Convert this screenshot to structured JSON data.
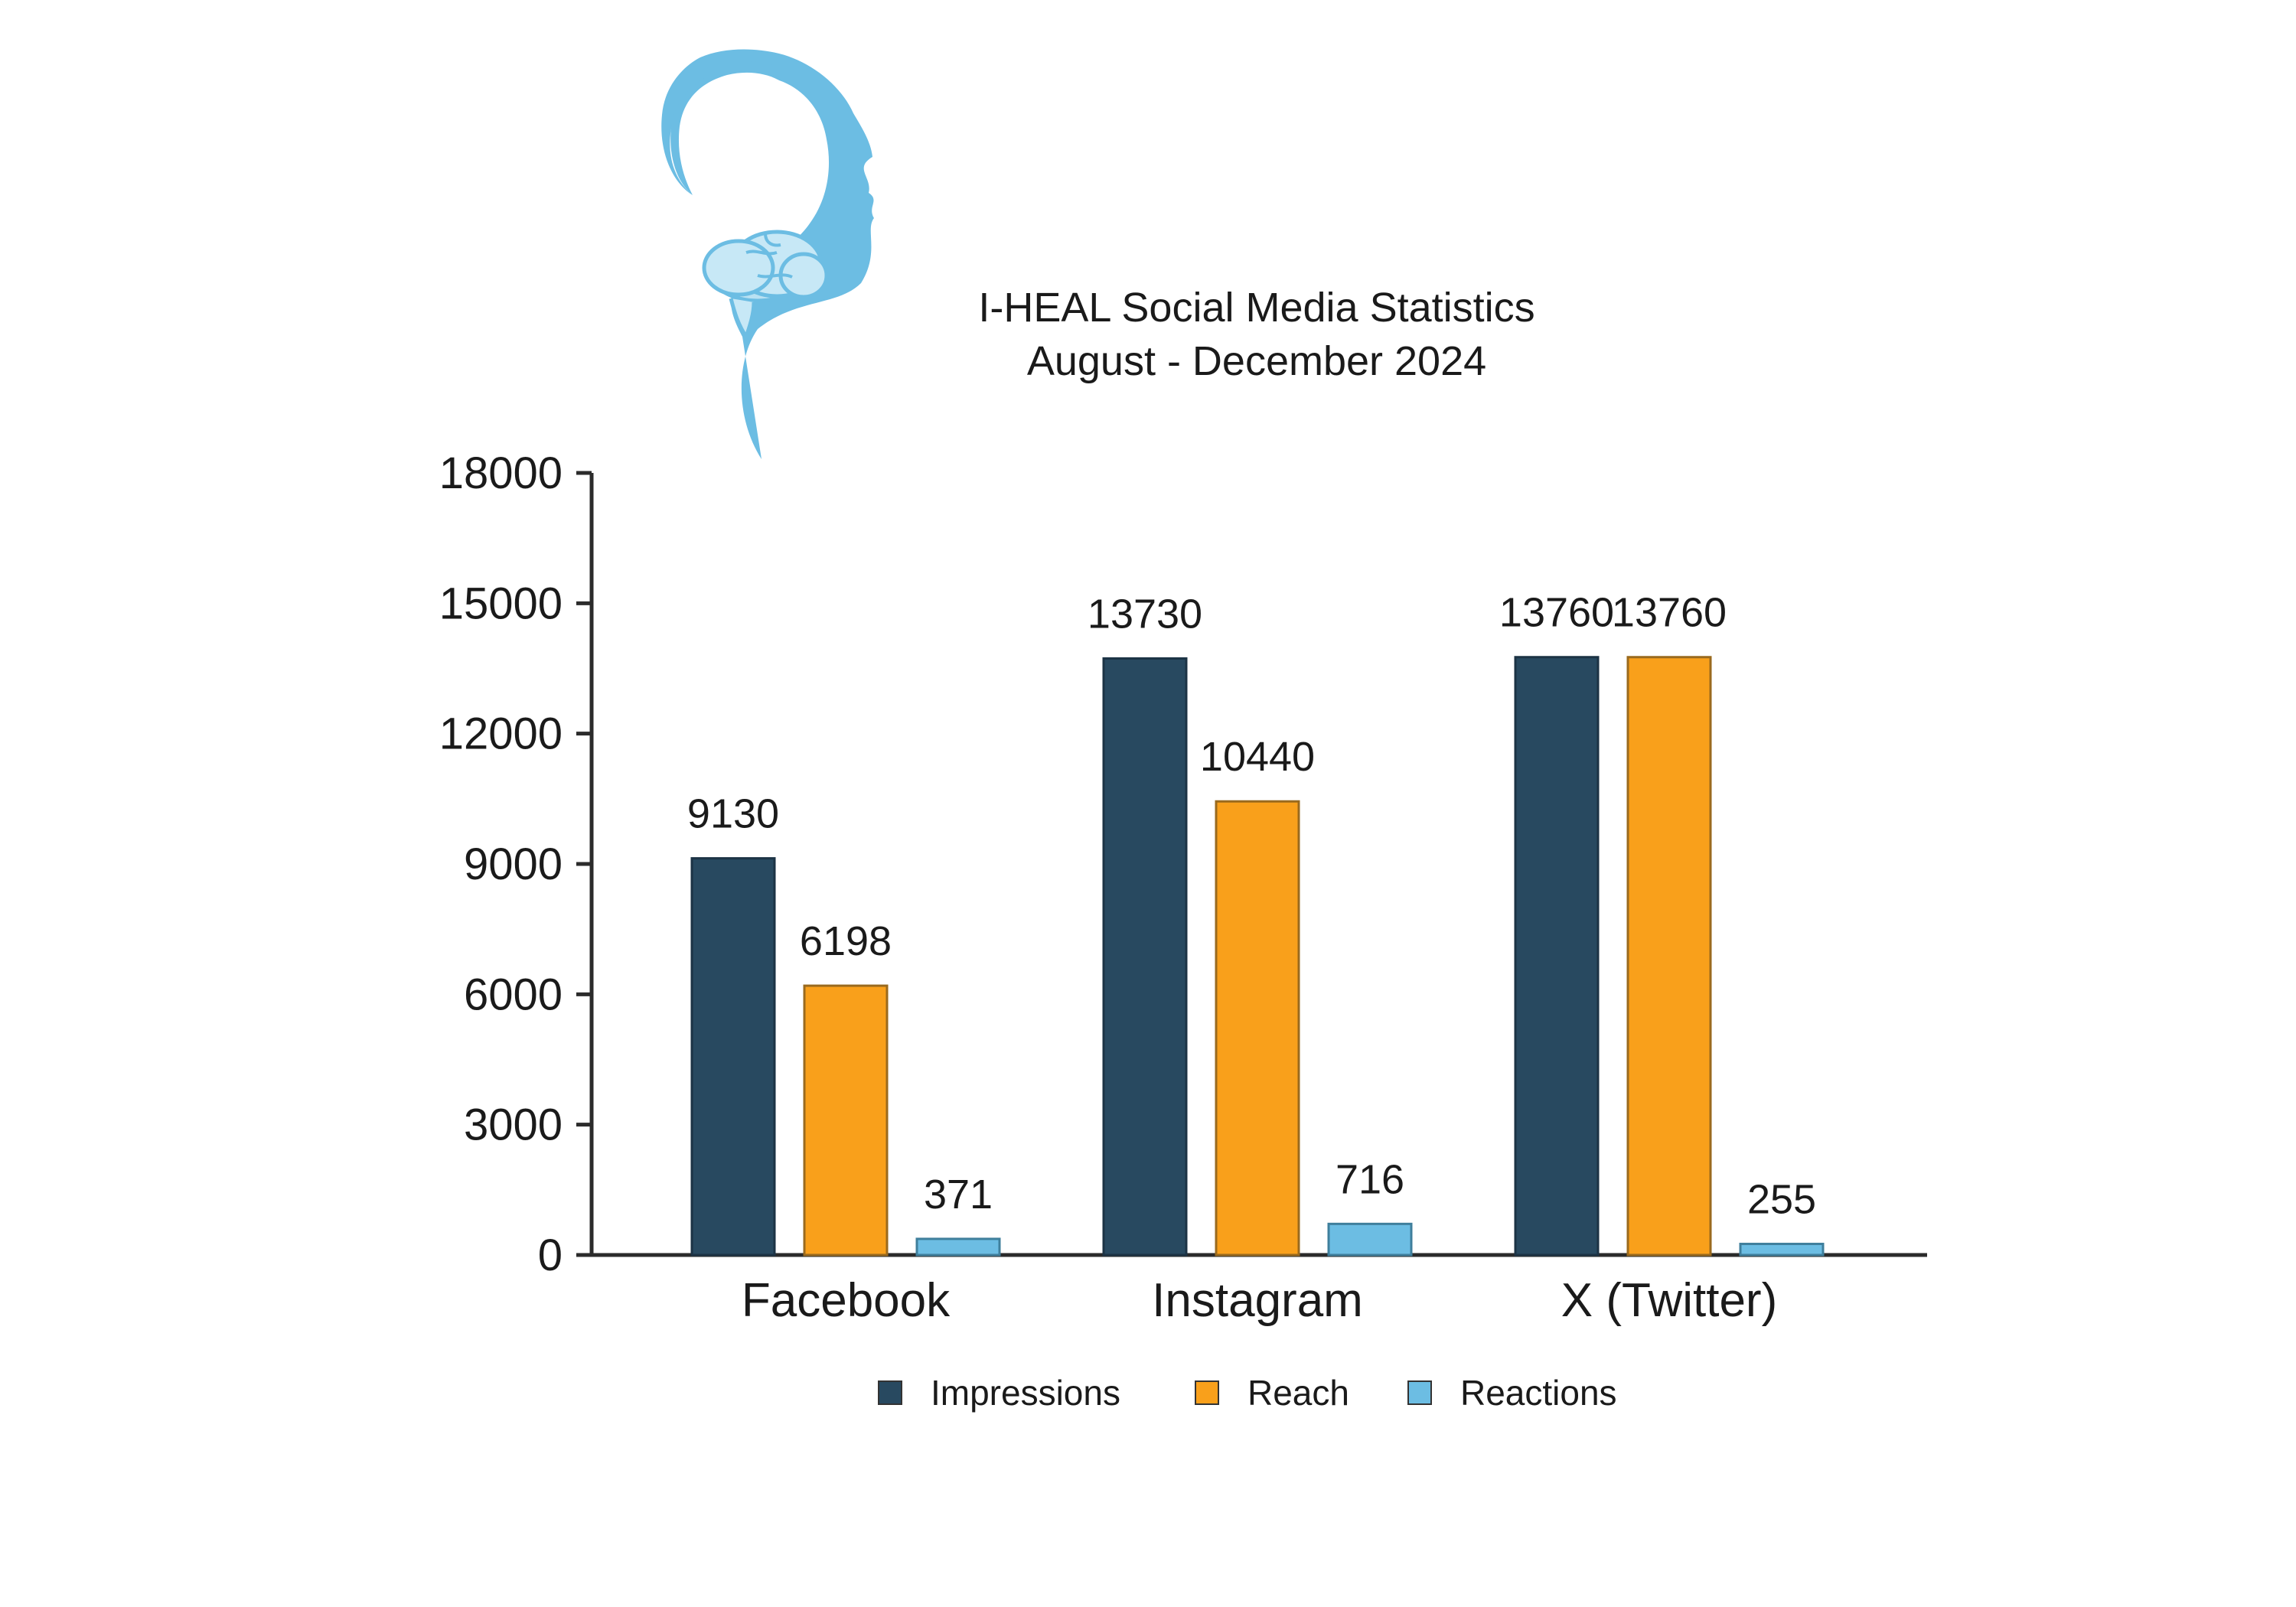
{
  "chart_data": {
    "type": "bar",
    "title": "I-HEAL Social Media Statistics",
    "subtitle": "August - December 2024",
    "xlabel": "",
    "ylabel": "",
    "categories": [
      "Facebook",
      "Instagram",
      "X (Twitter)"
    ],
    "series": [
      {
        "name": "Impressions",
        "values": [
          9130,
          13730,
          13760
        ],
        "color": "#284960"
      },
      {
        "name": "Reach",
        "values": [
          6198,
          10440,
          13760
        ],
        "color": "#f9a01b"
      },
      {
        "name": "Reactions",
        "values": [
          371,
          716,
          255
        ],
        "color": "#6cbde3"
      }
    ],
    "ylim": [
      0,
      18000
    ],
    "yticks": [
      "0",
      "3000",
      "6000",
      "9000",
      "12000",
      "15000",
      "18000"
    ],
    "grid": false,
    "legend_position": "bottom-center"
  },
  "logo": {
    "icon": "head-brain-icon",
    "color": "#6cbde3"
  }
}
